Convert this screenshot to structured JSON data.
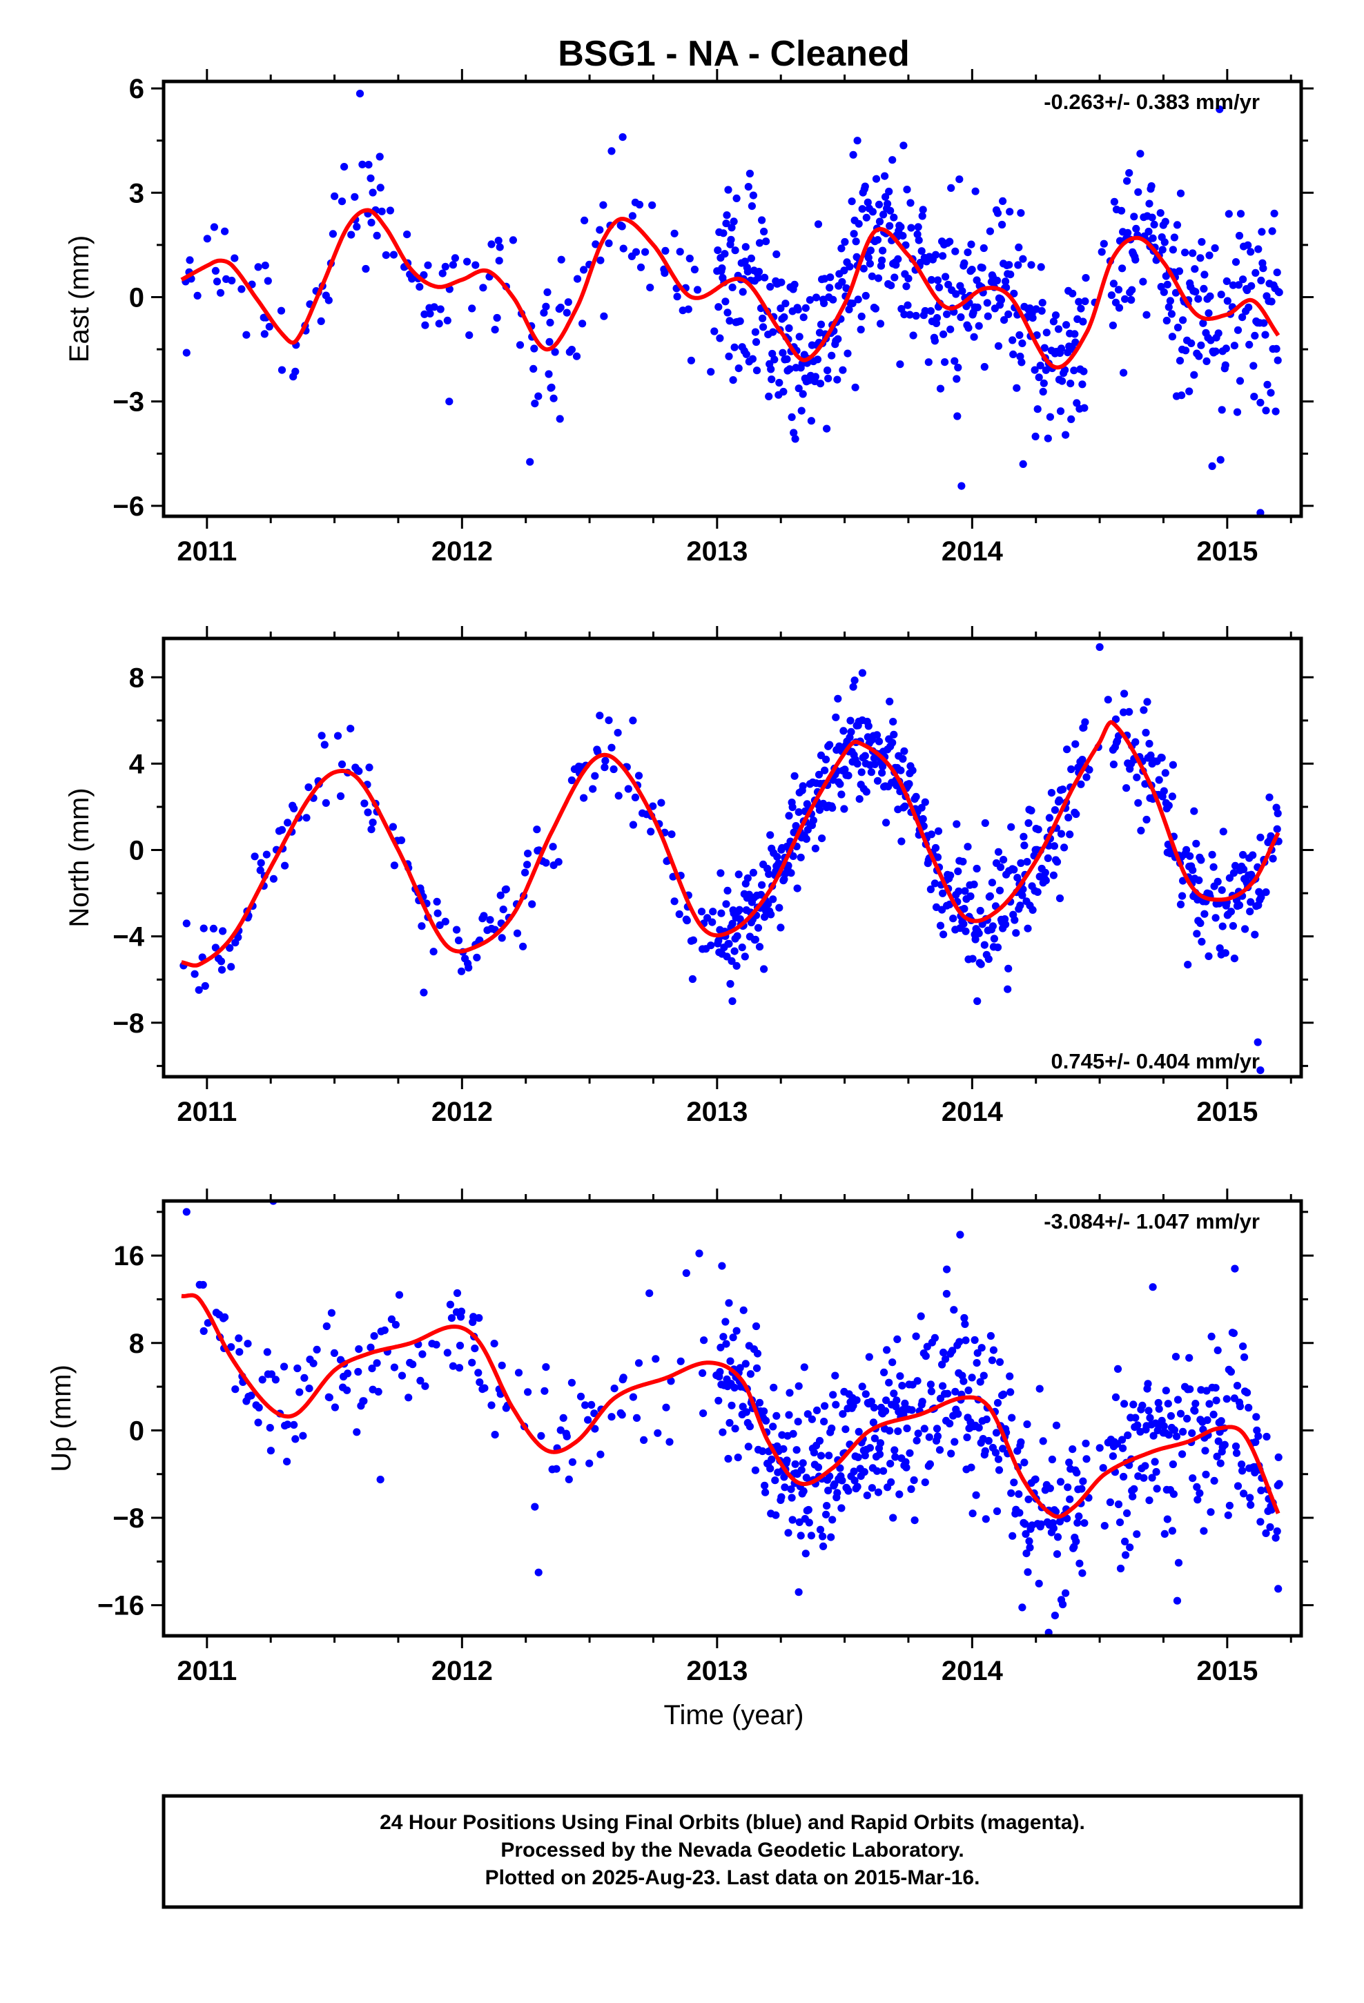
{
  "title": "BSG1  - NA - Cleaned",
  "xlabel": "Time (year)",
  "colors": {
    "points": "#0000ff",
    "fit": "#ff0000",
    "frame": "#000000"
  },
  "footer": {
    "line1": "24 Hour Positions Using Final Orbits (blue) and Rapid Orbits (magenta).",
    "line2": "Processed by the Nevada Geodetic Laboratory.",
    "line3": "Plotted on 2025-Aug-23. Last data on 2015-Mar-16."
  },
  "chart_data": [
    {
      "type": "scatter",
      "ylabel": "East (mm)",
      "rate": "-0.263+/- 0.383 mm/yr",
      "rate_position": "top-right",
      "xlim": [
        2010.83,
        2015.29
      ],
      "ylim": [
        -6.3,
        6.2
      ],
      "x_ticks": [
        2011,
        2012,
        2013,
        2014,
        2015
      ],
      "x_tick_labels": [
        "2011",
        "2012",
        "2013",
        "2014",
        "2015"
      ],
      "y_ticks": [
        -6,
        -3,
        0,
        3,
        6
      ],
      "y_tick_labels": [
        "−6",
        "−3",
        "0",
        "3",
        "6"
      ],
      "fit_curve": {
        "x": [
          2010.9,
          2011.0,
          2011.05,
          2011.1,
          2011.2,
          2011.3,
          2011.35,
          2011.45,
          2011.55,
          2011.63,
          2011.7,
          2011.8,
          2011.9,
          2012.0,
          2012.1,
          2012.2,
          2012.33,
          2012.45,
          2012.55,
          2012.63,
          2012.75,
          2012.9,
          2013.1,
          2013.25,
          2013.35,
          2013.5,
          2013.62,
          2013.75,
          2013.9,
          2014.05,
          2014.15,
          2014.32,
          2014.45,
          2014.55,
          2014.65,
          2014.75,
          2014.88,
          2015.0,
          2015.1,
          2015.2
        ],
        "y": [
          0.5,
          0.9,
          1.05,
          0.9,
          -0.1,
          -1.1,
          -1.25,
          0.3,
          2.0,
          2.5,
          2.0,
          0.8,
          0.3,
          0.5,
          0.75,
          0.0,
          -1.5,
          -0.3,
          1.6,
          2.25,
          1.5,
          0.0,
          0.5,
          -1.0,
          -1.8,
          -0.2,
          1.9,
          1.2,
          -0.3,
          0.25,
          0.0,
          -2.0,
          -1.0,
          1.1,
          1.7,
          1.0,
          -0.5,
          -0.5,
          -0.1,
          -1.1
        ]
      },
      "point_model": {
        "amplitude_annual": 1.6,
        "amplitude_semiannual": 1.0,
        "scatter_by_year": [
          0.9,
          1.1,
          1.2,
          1.3,
          1.5
        ]
      },
      "samples": [
        {
          "x": 2010.92,
          "y": -1.6
        },
        {
          "x": 2011.5,
          "y": 2.9
        },
        {
          "x": 2011.6,
          "y": 5.85
        },
        {
          "x": 2011.95,
          "y": -3.0
        },
        {
          "x": 2012.63,
          "y": 4.6
        },
        {
          "x": 2013.3,
          "y": -3.9
        },
        {
          "x": 2013.55,
          "y": 4.5
        },
        {
          "x": 2014.2,
          "y": -4.8
        },
        {
          "x": 2014.97,
          "y": 5.4
        },
        {
          "x": 2015.13,
          "y": -6.2
        }
      ]
    },
    {
      "type": "scatter",
      "ylabel": "North (mm)",
      "rate": "0.745+/- 0.404 mm/yr",
      "rate_position": "bottom-right",
      "xlim": [
        2010.83,
        2015.29
      ],
      "ylim": [
        -10.5,
        9.8
      ],
      "x_ticks": [
        2011,
        2012,
        2013,
        2014,
        2015
      ],
      "x_tick_labels": [
        "2011",
        "2012",
        "2013",
        "2014",
        "2015"
      ],
      "y_ticks": [
        -8,
        -4,
        0,
        4,
        8
      ],
      "y_tick_labels": [
        "−8",
        "−4",
        "0",
        "4",
        "8"
      ],
      "fit_curve": {
        "x": [
          2010.9,
          2010.97,
          2011.1,
          2011.25,
          2011.4,
          2011.5,
          2011.6,
          2011.75,
          2011.93,
          2012.05,
          2012.2,
          2012.35,
          2012.5,
          2012.6,
          2012.75,
          2012.93,
          2013.05,
          2013.2,
          2013.35,
          2013.5,
          2013.55,
          2013.7,
          2013.85,
          2013.97,
          2014.1,
          2014.25,
          2014.4,
          2014.5,
          2014.55,
          2014.7,
          2014.85,
          2014.97,
          2015.1,
          2015.2
        ],
        "y": [
          -5.2,
          -5.3,
          -4.0,
          -0.8,
          2.4,
          3.6,
          3.2,
          0.0,
          -4.3,
          -4.5,
          -3.0,
          0.8,
          4.0,
          4.2,
          1.5,
          -3.4,
          -3.8,
          -2.0,
          1.5,
          4.5,
          5.0,
          3.5,
          -0.5,
          -3.1,
          -2.8,
          -0.5,
          3.0,
          5.0,
          5.9,
          3.0,
          -1.5,
          -2.3,
          -1.5,
          0.8
        ]
      },
      "point_model": {
        "amplitude_annual": 4.7,
        "scatter_by_year": [
          0.9,
          1.0,
          1.1,
          1.3,
          1.2
        ]
      },
      "samples": [
        {
          "x": 2010.92,
          "y": -3.4
        },
        {
          "x": 2011.45,
          "y": 5.3
        },
        {
          "x": 2011.85,
          "y": -6.6
        },
        {
          "x": 2012.67,
          "y": 6.0
        },
        {
          "x": 2013.06,
          "y": -7.0
        },
        {
          "x": 2013.57,
          "y": 8.2
        },
        {
          "x": 2014.02,
          "y": -7.0
        },
        {
          "x": 2014.5,
          "y": 9.4
        },
        {
          "x": 2015.12,
          "y": -8.9
        },
        {
          "x": 2015.13,
          "y": -10.2
        }
      ]
    },
    {
      "type": "scatter",
      "ylabel": "Up (mm)",
      "rate": "-3.084+/- 1.047 mm/yr",
      "rate_position": "top-right",
      "xlim": [
        2010.83,
        2015.29
      ],
      "ylim": [
        -18.8,
        21.0
      ],
      "x_ticks": [
        2011,
        2012,
        2013,
        2014,
        2015
      ],
      "x_tick_labels": [
        "2011",
        "2012",
        "2013",
        "2014",
        "2015"
      ],
      "y_ticks": [
        -16,
        -8,
        0,
        8,
        16
      ],
      "y_tick_labels": [
        "−16",
        "−8",
        "0",
        "8",
        "16"
      ],
      "fit_curve": {
        "x": [
          2010.9,
          2010.97,
          2011.1,
          2011.25,
          2011.35,
          2011.5,
          2011.63,
          2011.8,
          2011.97,
          2012.07,
          2012.2,
          2012.33,
          2012.45,
          2012.6,
          2012.8,
          2012.97,
          2013.1,
          2013.2,
          2013.32,
          2013.45,
          2013.6,
          2013.8,
          2013.97,
          2014.07,
          2014.2,
          2014.32,
          2014.4,
          2014.52,
          2014.7,
          2014.85,
          2014.97,
          2015.07,
          2015.2
        ],
        "y": [
          12.3,
          12.0,
          6.5,
          2.0,
          1.5,
          5.5,
          7.0,
          8.0,
          9.5,
          8.0,
          2.0,
          -1.8,
          -1.0,
          3.0,
          4.8,
          6.2,
          4.5,
          -1.0,
          -4.8,
          -3.5,
          0.0,
          1.5,
          3.0,
          2.0,
          -4.5,
          -7.8,
          -7.0,
          -4.0,
          -2.0,
          -1.0,
          0.2,
          -0.5,
          -7.6
        ]
      },
      "point_model": {
        "scatter_by_year": [
          2.6,
          3.2,
          3.6,
          4.2,
          3.6
        ]
      },
      "samples": [
        {
          "x": 2010.92,
          "y": 20.0
        },
        {
          "x": 2011.26,
          "y": 21.0
        },
        {
          "x": 2011.68,
          "y": -4.5
        },
        {
          "x": 2012.3,
          "y": -13.0
        },
        {
          "x": 2012.93,
          "y": 16.2
        },
        {
          "x": 2013.32,
          "y": -14.8
        },
        {
          "x": 2013.9,
          "y": 12.5
        },
        {
          "x": 2014.3,
          "y": -18.5
        },
        {
          "x": 2015.03,
          "y": 14.8
        },
        {
          "x": 2015.2,
          "y": -14.5
        }
      ]
    }
  ]
}
